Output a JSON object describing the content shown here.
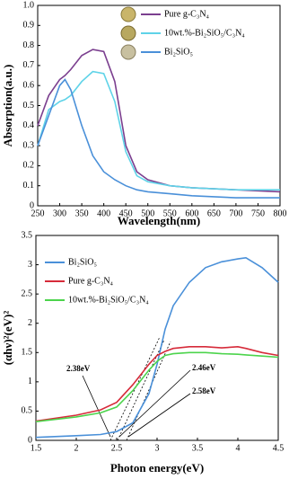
{
  "chart_data": [
    {
      "type": "line",
      "xlabel": "Wavelength(nm)",
      "ylabel": "Absorption(a.u.)",
      "x": [
        250,
        275,
        300,
        312,
        325,
        350,
        375,
        400,
        425,
        450,
        475,
        500,
        550,
        600,
        700,
        800
      ],
      "xlim": [
        250,
        800
      ],
      "xticks": [
        250,
        300,
        350,
        400,
        450,
        500,
        550,
        600,
        650,
        700,
        750,
        800
      ],
      "ylim": [
        0,
        1
      ],
      "yticks": [
        0,
        0.1,
        0.2,
        0.3,
        0.4,
        0.5,
        0.6,
        0.7,
        0.8,
        0.9,
        {
          "value": 1,
          "label": "1.0"
        }
      ],
      "series": [
        {
          "name": "Pure g-C₃N₄",
          "color": "#7b3f8f",
          "values": [
            0.4,
            0.55,
            0.63,
            0.65,
            0.68,
            0.75,
            0.78,
            0.77,
            0.62,
            0.3,
            0.17,
            0.13,
            0.1,
            0.09,
            0.08,
            0.07
          ]
        },
        {
          "name": "10wt.%-Bi₂SiO₅/C₃N₄",
          "color": "#5fd3e8",
          "values": [
            0.3,
            0.48,
            0.52,
            0.53,
            0.55,
            0.62,
            0.67,
            0.66,
            0.52,
            0.27,
            0.15,
            0.12,
            0.1,
            0.09,
            0.08,
            0.08
          ]
        },
        {
          "name": "Bi₂SiO₅",
          "color": "#4a90d9",
          "values": [
            0.3,
            0.45,
            0.6,
            0.63,
            0.58,
            0.4,
            0.25,
            0.17,
            0.13,
            0.1,
            0.08,
            0.07,
            0.06,
            0.05,
            0.04,
            0.04
          ]
        }
      ]
    },
    {
      "type": "line",
      "xlabel": "Photon energy(eV)",
      "ylabel": "(αhν)²(eV)²",
      "x": [
        1.5,
        2,
        2.3,
        2.5,
        2.7,
        2.9,
        3.0,
        3.1,
        3.2,
        3.4,
        3.6,
        3.8,
        4.0,
        4.1,
        4.3,
        4.5
      ],
      "xlim": [
        1.5,
        4.5
      ],
      "xticks": [
        1.5,
        2,
        2.5,
        3,
        3.5,
        4,
        4.5
      ],
      "ylim": [
        0,
        3.5
      ],
      "yticks": [
        0,
        0.5,
        1,
        1.5,
        2,
        2.5,
        3,
        3.5
      ],
      "annotations": [
        "2.38eV",
        "2.46eV",
        "2.58eV"
      ],
      "series": [
        {
          "name": "Bi₂SiO₅",
          "color": "#4a90d9",
          "values": [
            0.05,
            0.08,
            0.1,
            0.15,
            0.3,
            0.8,
            1.3,
            1.9,
            2.3,
            2.7,
            2.95,
            3.05,
            3.1,
            3.12,
            2.95,
            2.7
          ]
        },
        {
          "name": "Pure g-C₃N₄",
          "color": "#d62b3a",
          "values": [
            0.33,
            0.43,
            0.52,
            0.65,
            0.95,
            1.3,
            1.45,
            1.52,
            1.57,
            1.6,
            1.6,
            1.58,
            1.6,
            1.57,
            1.5,
            1.45
          ]
        },
        {
          "name": "10wt.%-Bi₂SiO₅/C₃N₄",
          "color": "#4cd44c",
          "values": [
            0.32,
            0.4,
            0.47,
            0.57,
            0.85,
            1.2,
            1.35,
            1.45,
            1.48,
            1.5,
            1.5,
            1.48,
            1.47,
            1.46,
            1.44,
            1.42
          ]
        }
      ]
    }
  ]
}
